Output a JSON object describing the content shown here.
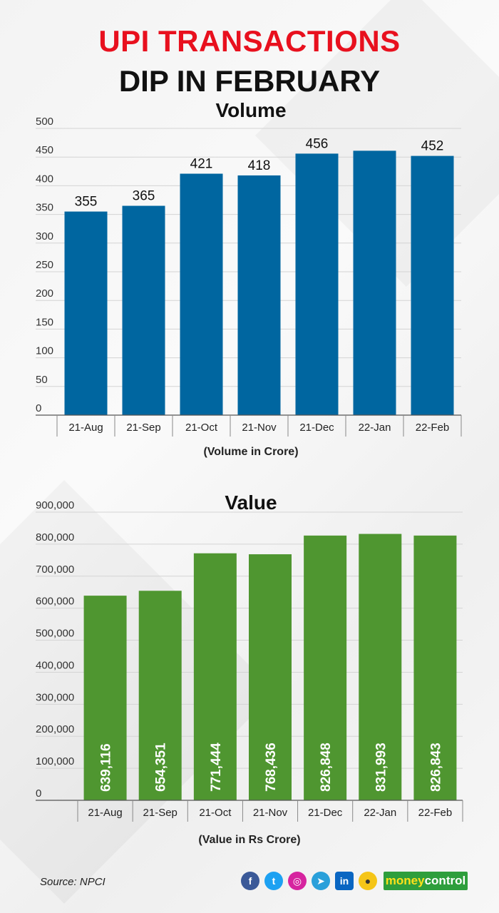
{
  "title_line1": "UPI TRANSACTIONS",
  "title_line2": "DIP IN FEBRUARY",
  "source": "Source: NPCI",
  "brand": {
    "part1": "money",
    "part2": "control"
  },
  "colors": {
    "title_red": "#e8101e",
    "volume_bar": "#0066a0",
    "value_bar": "#4f9630",
    "brand_green": "#2e9e3c"
  },
  "chart_data": [
    {
      "type": "bar",
      "title": "Volume",
      "xlabel": "(Volume in Crore)",
      "ylabel": "",
      "categories": [
        "21-Aug",
        "21-Sep",
        "21-Oct",
        "21-Nov",
        "21-Dec",
        "22-Jan",
        "22-Feb"
      ],
      "values": [
        355,
        365,
        421,
        418,
        456,
        461,
        452
      ],
      "data_labels": [
        "355",
        "365",
        "421",
        "418",
        "456",
        "",
        "452"
      ],
      "yticks": [
        "0",
        "50",
        "100",
        "150",
        "200",
        "250",
        "300",
        "350",
        "400",
        "450",
        "500"
      ],
      "ylim": [
        0,
        500
      ],
      "grid": true,
      "color": "#0066a0"
    },
    {
      "type": "bar",
      "title": "Value",
      "xlabel": "(Value in Rs Crore)",
      "ylabel": "",
      "categories": [
        "21-Aug",
        "21-Sep",
        "21-Oct",
        "21-Nov",
        "21-Dec",
        "22-Jan",
        "22-Feb"
      ],
      "values": [
        639116,
        654351,
        771444,
        768436,
        826848,
        831993,
        826843
      ],
      "data_labels": [
        "639,116",
        "654,351",
        "771,444",
        "768,436",
        "826,848",
        "831,993",
        "826,843"
      ],
      "yticks": [
        "0",
        "100,000",
        "200,000",
        "300,000",
        "400,000",
        "500,000",
        "600,000",
        "700,000",
        "800,000",
        "900,000"
      ],
      "ylim": [
        0,
        900000
      ],
      "grid": true,
      "color": "#4f9630"
    }
  ]
}
